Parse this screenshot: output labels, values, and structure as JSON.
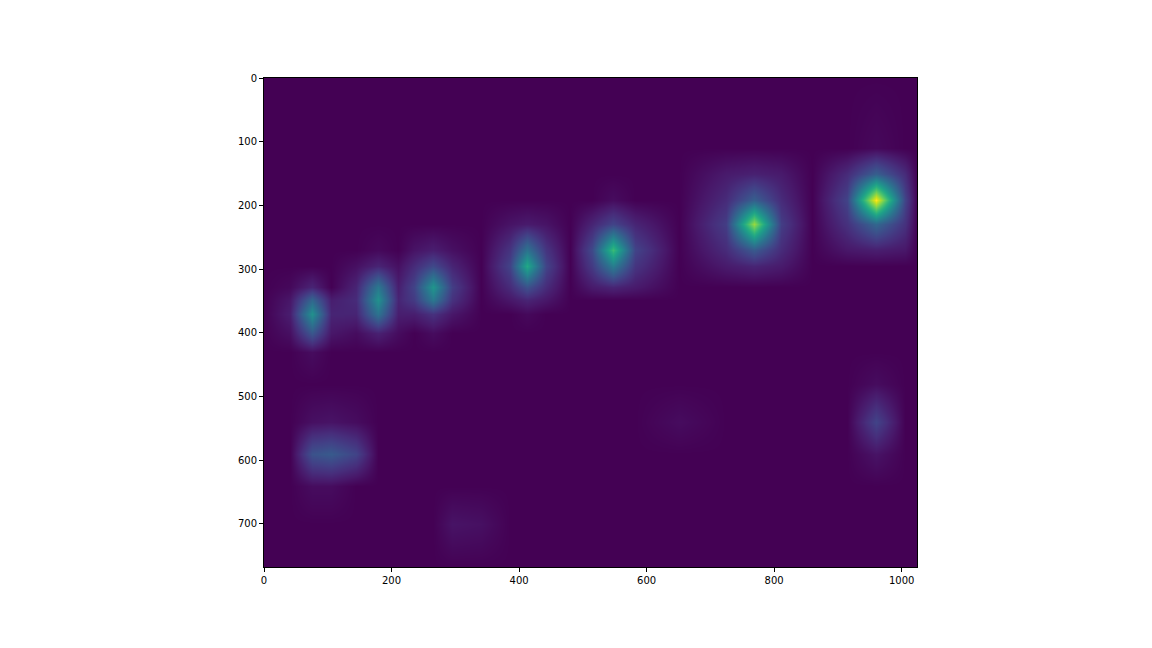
{
  "chart_data": {
    "type": "heatmap",
    "color": "Viridis",
    "grid": false,
    "x": [
      0,
      40,
      75,
      105,
      145,
      178,
      210,
      235,
      265,
      295,
      340,
      385,
      412,
      442,
      480,
      515,
      548,
      582,
      650,
      725,
      768,
      810,
      860,
      915,
      960,
      1005,
      1024
    ],
    "y": [
      0,
      110,
      150,
      192,
      230,
      270,
      295,
      328,
      348,
      370,
      400,
      430,
      480,
      540,
      590,
      640,
      700,
      768
    ],
    "z": [
      [
        0,
        0,
        0,
        0,
        0,
        0,
        0,
        0,
        0,
        0,
        0,
        0,
        0,
        0,
        0,
        0,
        0,
        0,
        0,
        0,
        0,
        0,
        0,
        0,
        0,
        0,
        0
      ],
      [
        0,
        0,
        0,
        0,
        0,
        0,
        0,
        0,
        0,
        0,
        0,
        0,
        0,
        0,
        0,
        0,
        0,
        0,
        0,
        0,
        0,
        0,
        0,
        0,
        0.02,
        0,
        0
      ],
      [
        0,
        0,
        0,
        0,
        0,
        0,
        0,
        0,
        0,
        0,
        0,
        0,
        0,
        0,
        0,
        0,
        0,
        0,
        0,
        0.07,
        0.09,
        0.07,
        0,
        0.12,
        0.3,
        0.12,
        0
      ],
      [
        0,
        0,
        0,
        0,
        0,
        0,
        0,
        0,
        0,
        0,
        0,
        0,
        0,
        0,
        0,
        0,
        0.03,
        0,
        0,
        0.12,
        0.3,
        0.12,
        0,
        0.2,
        1,
        0.2,
        0
      ],
      [
        0,
        0,
        0,
        0,
        0,
        0,
        0,
        0,
        0,
        0,
        0,
        0.05,
        0.07,
        0.05,
        0,
        0.1,
        0.2,
        0.1,
        0,
        0.18,
        0.85,
        0.18,
        0,
        0.14,
        0.33,
        0.14,
        0
      ],
      [
        0,
        0,
        0,
        0,
        0,
        0.02,
        0,
        0.05,
        0.08,
        0.04,
        0,
        0.15,
        0.38,
        0.15,
        0,
        0.22,
        0.68,
        0.2,
        0,
        0.12,
        0.28,
        0.12,
        0,
        0.06,
        0.08,
        0.06,
        0
      ],
      [
        0,
        0,
        0,
        0,
        0.04,
        0.1,
        0.04,
        0.12,
        0.22,
        0.1,
        0,
        0.2,
        0.6,
        0.2,
        0,
        0.17,
        0.42,
        0.15,
        0,
        0.07,
        0.1,
        0.07,
        0,
        0,
        0,
        0,
        0
      ],
      [
        0,
        0.02,
        0.1,
        0,
        0.1,
        0.4,
        0.08,
        0.2,
        0.52,
        0.18,
        0,
        0.12,
        0.25,
        0.12,
        0,
        0.07,
        0.1,
        0.07,
        0,
        0,
        0,
        0,
        0,
        0,
        0,
        0,
        0
      ],
      [
        0,
        0.06,
        0.33,
        0.08,
        0.12,
        0.5,
        0.1,
        0.17,
        0.4,
        0.14,
        0,
        0.06,
        0.1,
        0.06,
        0,
        0,
        0,
        0,
        0,
        0,
        0,
        0,
        0,
        0,
        0,
        0,
        0
      ],
      [
        0,
        0.08,
        0.5,
        0.1,
        0.1,
        0.38,
        0.08,
        0.08,
        0.14,
        0.06,
        0,
        0,
        0.02,
        0,
        0,
        0,
        0,
        0,
        0,
        0,
        0,
        0,
        0,
        0,
        0,
        0,
        0
      ],
      [
        0,
        0.04,
        0.27,
        0.06,
        0.03,
        0.09,
        0.03,
        0,
        0.03,
        0,
        0,
        0,
        0,
        0,
        0,
        0,
        0,
        0,
        0,
        0,
        0,
        0,
        0,
        0,
        0,
        0,
        0
      ],
      [
        0,
        0,
        0.03,
        0,
        0,
        0,
        0,
        0,
        0,
        0,
        0,
        0,
        0,
        0,
        0,
        0,
        0,
        0,
        0,
        0,
        0,
        0,
        0,
        0,
        0,
        0,
        0
      ],
      [
        0,
        0,
        0,
        0,
        0,
        0,
        0,
        0,
        0,
        0,
        0,
        0,
        0,
        0,
        0,
        0,
        0,
        0,
        0,
        0,
        0,
        0,
        0,
        0,
        0.03,
        0,
        0
      ],
      [
        0,
        0,
        0.04,
        0.05,
        0.03,
        0,
        0,
        0,
        0,
        0,
        0,
        0,
        0,
        0,
        0,
        0,
        0,
        0,
        0.03,
        0,
        0,
        0,
        0,
        0,
        0.2,
        0,
        0
      ],
      [
        0,
        0,
        0.25,
        0.28,
        0.2,
        0,
        0,
        0,
        0,
        0,
        0,
        0,
        0,
        0,
        0,
        0,
        0,
        0,
        0,
        0,
        0,
        0,
        0,
        0,
        0.05,
        0,
        0
      ],
      [
        0,
        0,
        0.03,
        0.03,
        0,
        0,
        0,
        0,
        0,
        0,
        0,
        0,
        0,
        0,
        0,
        0,
        0,
        0,
        0,
        0,
        0,
        0,
        0,
        0,
        0,
        0,
        0
      ],
      [
        0,
        0,
        0,
        0,
        0,
        0,
        0,
        0,
        0,
        0.05,
        0.04,
        0,
        0,
        0,
        0,
        0,
        0,
        0,
        0,
        0,
        0,
        0,
        0,
        0,
        0,
        0,
        0
      ],
      [
        0,
        0,
        0,
        0,
        0,
        0,
        0,
        0,
        0,
        0,
        0,
        0,
        0,
        0,
        0,
        0,
        0,
        0,
        0,
        0,
        0,
        0,
        0,
        0,
        0,
        0,
        0
      ]
    ],
    "zlim": [
      0,
      1
    ],
    "xlim": [
      0,
      1024
    ],
    "ylim": [
      768,
      0
    ],
    "xticks": [
      0,
      200,
      400,
      600,
      800,
      1000
    ],
    "yticks": [
      0,
      100,
      200,
      300,
      400,
      500,
      600,
      700
    ]
  }
}
